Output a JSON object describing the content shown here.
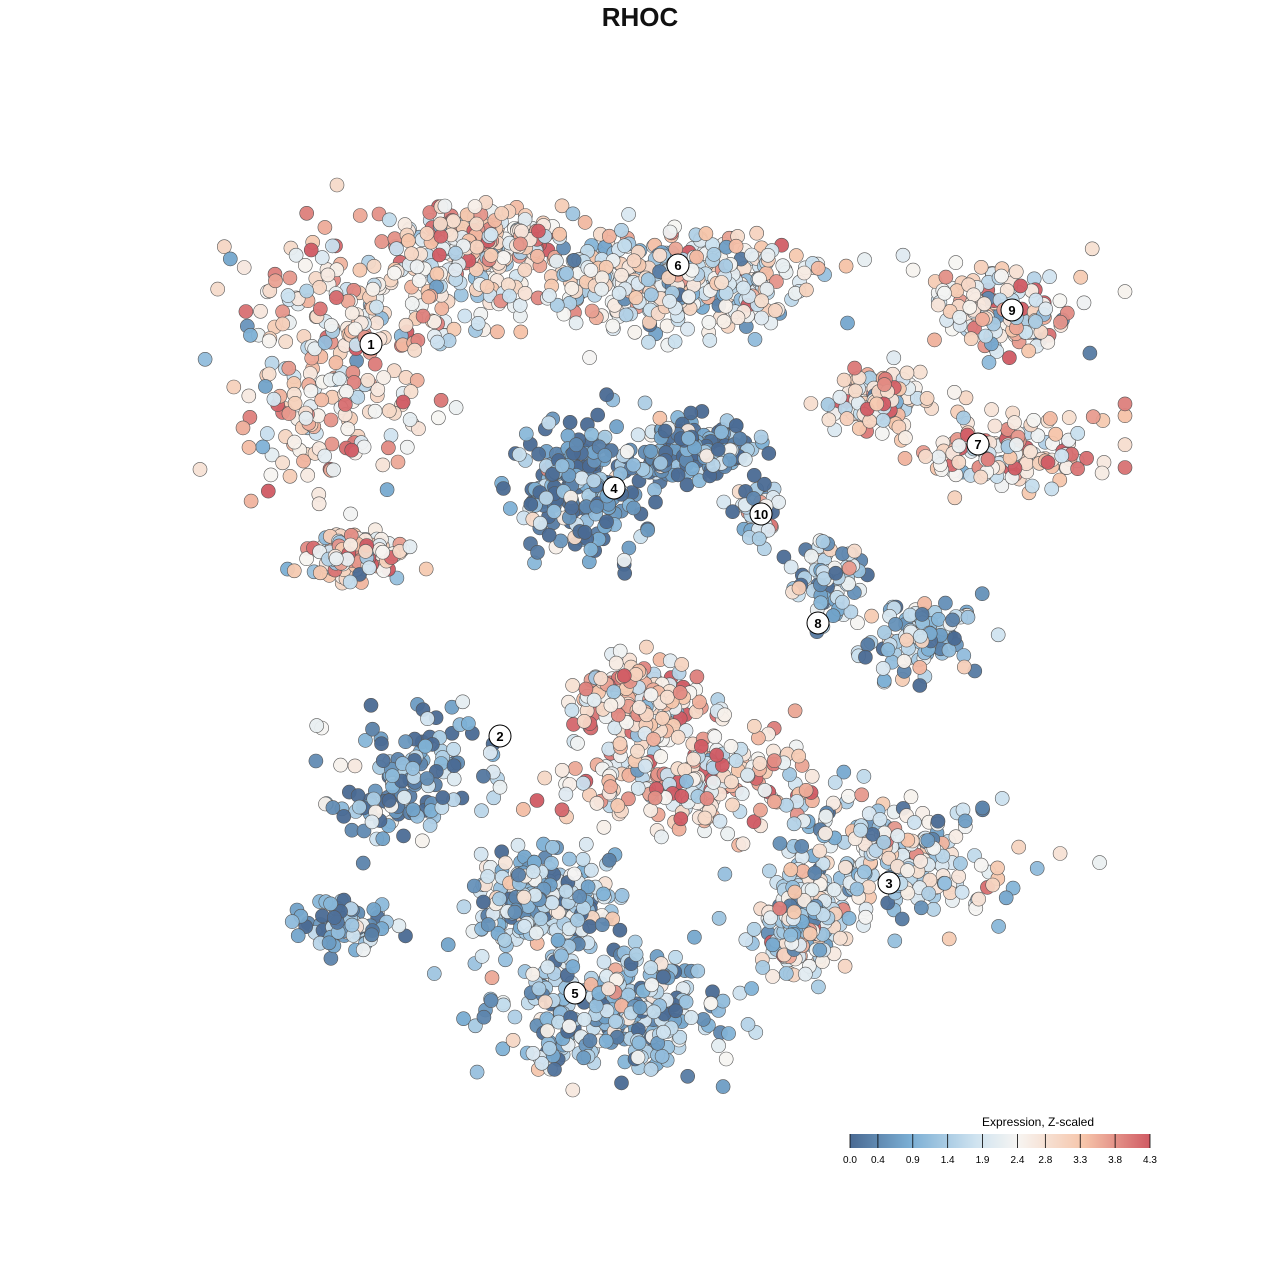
{
  "chart_data": {
    "type": "scatter",
    "title": "RHOC",
    "xlabel": "",
    "ylabel": "",
    "legend": {
      "title": "Expression, Z-scaled",
      "placement": "bottom-right",
      "ticks": [
        "0.0",
        "0.4",
        "0.9",
        "1.4",
        "1.9",
        "2.4",
        "2.8",
        "3.3",
        "3.8",
        "4.3"
      ],
      "range": [
        0.0,
        4.3
      ],
      "colors": [
        "#4a6a93",
        "#7aaed4",
        "#cfe3f0",
        "#f7f5f2",
        "#f6c5aa",
        "#d05a63"
      ]
    },
    "clusters": [
      {
        "label": "1",
        "mean_expression": 2.8
      },
      {
        "label": "2",
        "mean_expression": 0.7
      },
      {
        "label": "3",
        "mean_expression": 2.0
      },
      {
        "label": "4",
        "mean_expression": 0.5
      },
      {
        "label": "5",
        "mean_expression": 1.3
      },
      {
        "label": "6",
        "mean_expression": 2.3
      },
      {
        "label": "7",
        "mean_expression": 2.9
      },
      {
        "label": "8",
        "mean_expression": 1.4
      },
      {
        "label": "9",
        "mean_expression": 2.5
      },
      {
        "label": "10",
        "mean_expression": 1.6
      }
    ]
  }
}
